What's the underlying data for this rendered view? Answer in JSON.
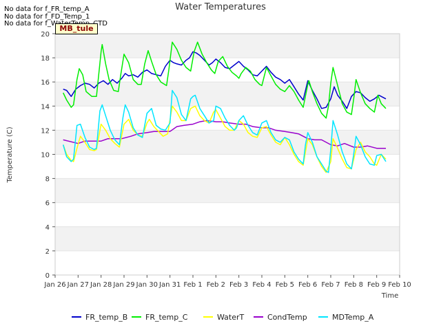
{
  "no_data_messages": [
    "No data for f_FR_temp_A",
    "No data for f_FD_Temp_1",
    "No data for f_WaterTemp_CTD"
  ],
  "badge": "MB_tule",
  "chart_data": {
    "type": "line",
    "title": "Water Temperatures",
    "xlabel": "Time",
    "ylabel": "Temperature (C)",
    "xlim": [
      0,
      15
    ],
    "ylim": [
      0,
      20
    ],
    "grid": true,
    "legend": "bottom",
    "x_ticks": [
      {
        "x": 0,
        "label": "Jan 26"
      },
      {
        "x": 1,
        "label": "Jan 27"
      },
      {
        "x": 2,
        "label": "Jan 28"
      },
      {
        "x": 3,
        "label": "Jan 29"
      },
      {
        "x": 4,
        "label": "Jan 30"
      },
      {
        "x": 5,
        "label": "Jan 31"
      },
      {
        "x": 6,
        "label": "Feb 1"
      },
      {
        "x": 7,
        "label": "Feb 2"
      },
      {
        "x": 8,
        "label": "Feb 3"
      },
      {
        "x": 9,
        "label": "Feb 4"
      },
      {
        "x": 10,
        "label": "Feb 5"
      },
      {
        "x": 11,
        "label": "Feb 6"
      },
      {
        "x": 12,
        "label": "Feb 7"
      },
      {
        "x": 13,
        "label": "Feb 8"
      },
      {
        "x": 14,
        "label": "Feb 9"
      },
      {
        "x": 15,
        "label": "Feb 10"
      }
    ],
    "y_ticks": [
      0,
      2,
      4,
      6,
      8,
      10,
      12,
      14,
      16,
      18,
      20
    ],
    "series": [
      {
        "name": "FR_temp_B",
        "color": "#0000cc",
        "x": [
          0.35,
          0.5,
          0.7,
          0.9,
          1.1,
          1.3,
          1.5,
          1.7,
          1.9,
          2.1,
          2.3,
          2.5,
          2.7,
          2.9,
          3.05,
          3.2,
          3.4,
          3.6,
          3.8,
          4.0,
          4.2,
          4.4,
          4.6,
          4.8,
          5.0,
          5.15,
          5.3,
          5.5,
          5.7,
          5.85,
          6.0,
          6.15,
          6.3,
          6.5,
          6.7,
          6.85,
          7.0,
          7.2,
          7.4,
          7.6,
          7.8,
          8.0,
          8.2,
          8.4,
          8.6,
          8.8,
          9.0,
          9.2,
          9.4,
          9.6,
          9.8,
          10.0,
          10.2,
          10.4,
          10.6,
          10.8,
          11.0,
          11.2,
          11.4,
          11.6,
          11.8,
          12.0,
          12.15,
          12.3,
          12.5,
          12.7,
          12.9,
          13.1,
          13.3,
          13.5,
          13.7,
          13.9,
          14.1,
          14.2,
          14.4
        ],
        "y": [
          15.4,
          15.3,
          14.8,
          15.4,
          15.7,
          15.9,
          15.8,
          15.5,
          15.9,
          16.1,
          15.8,
          16.2,
          15.9,
          16.3,
          16.7,
          16.5,
          16.6,
          16.4,
          16.8,
          17.0,
          16.7,
          16.6,
          16.5,
          17.3,
          17.8,
          17.6,
          17.5,
          17.4,
          17.8,
          18.0,
          18.5,
          18.4,
          18.2,
          17.8,
          17.4,
          17.6,
          17.9,
          17.6,
          17.2,
          17.1,
          17.4,
          17.7,
          17.3,
          17.0,
          16.6,
          16.5,
          16.9,
          17.3,
          16.8,
          16.4,
          16.2,
          15.9,
          16.2,
          15.6,
          15.0,
          14.5,
          16.1,
          15.3,
          14.6,
          13.8,
          13.9,
          14.6,
          15.6,
          14.9,
          14.4,
          13.8,
          14.8,
          15.2,
          15.1,
          14.7,
          14.4,
          14.6,
          14.9,
          14.8,
          14.6
        ]
      },
      {
        "name": "FR_temp_C",
        "color": "#00ee00",
        "x": [
          0.35,
          0.5,
          0.7,
          0.8,
          0.95,
          1.05,
          1.2,
          1.35,
          1.6,
          1.8,
          2.0,
          2.05,
          2.2,
          2.35,
          2.55,
          2.75,
          2.85,
          3.0,
          3.2,
          3.4,
          3.6,
          3.75,
          3.9,
          4.05,
          4.2,
          4.4,
          4.6,
          4.85,
          4.95,
          5.1,
          5.3,
          5.5,
          5.7,
          5.9,
          6.05,
          6.2,
          6.4,
          6.6,
          6.8,
          6.95,
          7.1,
          7.3,
          7.5,
          7.7,
          7.9,
          8.0,
          8.1,
          8.3,
          8.5,
          8.7,
          8.9,
          9.0,
          9.2,
          9.4,
          9.6,
          9.8,
          10.0,
          10.2,
          10.4,
          10.6,
          10.8,
          11.0,
          11.05,
          11.2,
          11.4,
          11.6,
          11.8,
          11.9,
          12.0,
          12.1,
          12.3,
          12.5,
          12.7,
          12.9,
          13.0,
          13.1,
          13.3,
          13.5,
          13.7,
          13.9,
          14.05,
          14.2,
          14.4
        ],
        "y": [
          15.1,
          14.5,
          13.9,
          14.1,
          16.2,
          17.1,
          16.6,
          15.2,
          14.8,
          14.8,
          18.5,
          19.1,
          17.5,
          16.2,
          15.3,
          15.2,
          16.5,
          18.3,
          17.6,
          16.2,
          15.8,
          15.8,
          17.5,
          18.6,
          17.7,
          16.6,
          16.0,
          15.7,
          17.0,
          19.3,
          18.7,
          17.8,
          17.2,
          16.9,
          18.5,
          19.3,
          18.3,
          17.6,
          17.0,
          16.7,
          17.7,
          18.1,
          17.3,
          16.8,
          16.5,
          16.3,
          16.7,
          17.2,
          16.9,
          16.2,
          15.8,
          15.7,
          17.2,
          16.5,
          15.8,
          15.4,
          15.2,
          15.7,
          15.2,
          14.5,
          13.9,
          15.8,
          16.1,
          15.2,
          14.2,
          13.4,
          13.0,
          14.0,
          15.9,
          17.2,
          15.7,
          14.2,
          13.5,
          13.3,
          14.6,
          16.2,
          15.1,
          14.2,
          13.8,
          13.5,
          14.9,
          14.2,
          13.8
        ]
      },
      {
        "name": "WaterT",
        "color": "#ffff00",
        "x": [
          0.35,
          0.5,
          0.7,
          0.8,
          0.95,
          1.1,
          1.3,
          1.5,
          1.7,
          1.8,
          2.0,
          2.2,
          2.4,
          2.6,
          2.8,
          3.0,
          3.2,
          3.4,
          3.6,
          3.8,
          4.0,
          4.1,
          4.3,
          4.5,
          4.7,
          4.9,
          5.1,
          5.3,
          5.5,
          5.7,
          5.9,
          6.1,
          6.3,
          6.5,
          6.7,
          6.9,
          7.0,
          7.2,
          7.4,
          7.6,
          7.8,
          8.0,
          8.2,
          8.4,
          8.6,
          8.8,
          9.0,
          9.2,
          9.4,
          9.6,
          9.8,
          10.0,
          10.2,
          10.4,
          10.6,
          10.8,
          11.0,
          11.2,
          11.4,
          11.6,
          11.8,
          12.0,
          12.1,
          12.3,
          12.5,
          12.7,
          12.9,
          13.1,
          13.3,
          13.5,
          13.7,
          13.9,
          14.0,
          14.2,
          14.4
        ],
        "y": [
          10.8,
          10.0,
          9.5,
          9.4,
          10.5,
          11.5,
          11.0,
          10.4,
          10.3,
          10.4,
          12.5,
          12.0,
          11.3,
          10.9,
          10.6,
          12.5,
          12.9,
          12.0,
          11.6,
          11.5,
          12.6,
          12.9,
          12.3,
          11.9,
          11.5,
          11.7,
          14.0,
          13.5,
          12.8,
          12.8,
          13.8,
          14.0,
          13.2,
          12.8,
          12.6,
          13.5,
          13.7,
          13.0,
          12.3,
          12.0,
          12.0,
          12.8,
          12.5,
          11.8,
          11.5,
          11.4,
          12.2,
          12.3,
          11.6,
          11.0,
          10.8,
          11.4,
          10.8,
          10.0,
          9.4,
          9.1,
          11.3,
          10.8,
          9.8,
          9.0,
          8.5,
          9.4,
          11.3,
          10.5,
          9.6,
          8.9,
          8.8,
          10.4,
          11.0,
          10.2,
          9.8,
          9.2,
          9.1,
          10.0,
          9.6
        ]
      },
      {
        "name": "CondTemp",
        "color": "#9900cc",
        "x": [
          0.35,
          1.0,
          1.3,
          1.6,
          2.0,
          2.3,
          2.6,
          2.9,
          3.3,
          3.6,
          4.0,
          4.3,
          4.6,
          5.0,
          5.3,
          5.6,
          6.0,
          6.3,
          6.6,
          7.0,
          7.3,
          7.6,
          8.0,
          8.3,
          8.6,
          9.0,
          9.3,
          9.6,
          10.0,
          10.3,
          10.6,
          11.0,
          11.3,
          11.6,
          12.0,
          12.3,
          12.6,
          13.0,
          13.3,
          13.6,
          14.0,
          14.4
        ],
        "y": [
          11.2,
          10.9,
          11.1,
          11.1,
          11.1,
          11.3,
          11.3,
          11.3,
          11.5,
          11.7,
          11.8,
          11.9,
          11.9,
          11.9,
          12.3,
          12.4,
          12.5,
          12.7,
          12.8,
          12.7,
          12.7,
          12.6,
          12.5,
          12.5,
          12.3,
          12.2,
          12.2,
          12.0,
          11.9,
          11.8,
          11.7,
          11.3,
          11.2,
          11.2,
          10.8,
          10.7,
          10.9,
          10.6,
          10.6,
          10.7,
          10.5,
          10.5
        ]
      },
      {
        "name": "MDTemp_A",
        "color": "#00e5ff",
        "x": [
          0.35,
          0.5,
          0.7,
          0.8,
          0.95,
          1.1,
          1.3,
          1.5,
          1.7,
          1.8,
          1.95,
          2.05,
          2.2,
          2.4,
          2.6,
          2.8,
          2.95,
          3.05,
          3.2,
          3.4,
          3.6,
          3.8,
          4.0,
          4.2,
          4.4,
          4.6,
          4.8,
          5.0,
          5.1,
          5.3,
          5.5,
          5.7,
          5.9,
          6.0,
          6.1,
          6.3,
          6.5,
          6.7,
          6.9,
          7.0,
          7.2,
          7.4,
          7.6,
          7.8,
          7.9,
          8.0,
          8.2,
          8.4,
          8.6,
          8.8,
          9.0,
          9.2,
          9.4,
          9.6,
          9.8,
          10.0,
          10.2,
          10.4,
          10.6,
          10.8,
          10.9,
          11.0,
          11.2,
          11.4,
          11.6,
          11.8,
          11.9,
          12.0,
          12.1,
          12.3,
          12.5,
          12.7,
          12.9,
          13.0,
          13.1,
          13.3,
          13.5,
          13.7,
          13.9,
          14.0,
          14.2,
          14.4
        ],
        "y": [
          10.8,
          9.8,
          9.4,
          9.6,
          12.4,
          12.5,
          11.4,
          10.6,
          10.4,
          10.5,
          13.6,
          14.1,
          13.2,
          12.0,
          11.2,
          10.8,
          13.0,
          14.1,
          13.5,
          12.2,
          11.6,
          11.4,
          13.4,
          13.8,
          12.4,
          12.1,
          12.0,
          12.6,
          15.3,
          14.7,
          13.3,
          12.8,
          14.6,
          14.8,
          14.9,
          13.8,
          13.2,
          12.6,
          12.8,
          14.0,
          13.8,
          13.0,
          12.4,
          12.0,
          12.2,
          12.8,
          13.2,
          12.4,
          11.8,
          11.6,
          12.6,
          12.8,
          11.8,
          11.2,
          11.0,
          11.4,
          11.2,
          10.2,
          9.6,
          9.2,
          10.8,
          11.8,
          11.0,
          9.8,
          9.2,
          8.6,
          8.5,
          10.4,
          12.8,
          11.6,
          10.2,
          9.2,
          8.8,
          10.0,
          11.5,
          10.8,
          9.8,
          9.2,
          9.1,
          9.9,
          10.0,
          9.4
        ]
      }
    ]
  }
}
